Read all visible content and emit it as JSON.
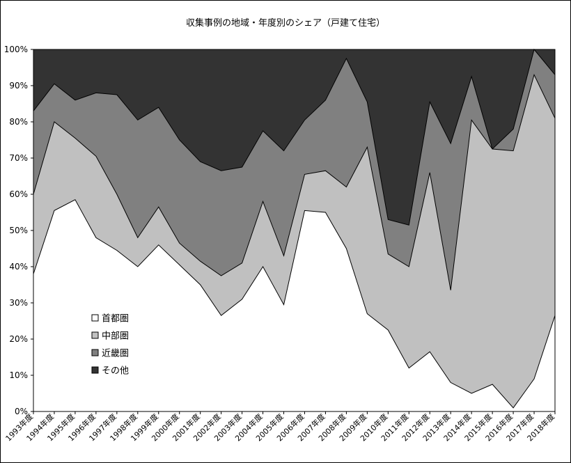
{
  "chart_data": {
    "type": "area",
    "stacked": true,
    "title": "収集事例の地域・年度別のシェア（戸建て住宅）",
    "categories": [
      "1993年度",
      "1994年度",
      "1995年度",
      "1996年度",
      "1997年度",
      "1998年度",
      "1999年度",
      "2000年度",
      "2001年度",
      "2002年度",
      "2003年度",
      "2004年度",
      "2005年度",
      "2006年度",
      "2007年度",
      "2008年度",
      "2009年度",
      "2010年度",
      "2011年度",
      "2012年度",
      "2013年度",
      "2014年度",
      "2015年度",
      "2016年度",
      "2017年度",
      "2018年度"
    ],
    "ylim": [
      0,
      100
    ],
    "yticks": [
      "0%",
      "10%",
      "20%",
      "30%",
      "40%",
      "50%",
      "60%",
      "70%",
      "80%",
      "90%",
      "100%"
    ],
    "legend_position": "left-lower-inside",
    "series": [
      {
        "name": "首都圏",
        "color": "#ffffff",
        "values": [
          38,
          55.5,
          58.5,
          48,
          44.5,
          40,
          46,
          40.5,
          35,
          26.5,
          31,
          40,
          29.5,
          55.5,
          55,
          45,
          27,
          22.5,
          12,
          16.5,
          8,
          5,
          7.5,
          1,
          9,
          26.5
        ]
      },
      {
        "name": "中部圏",
        "color": "#c0c0c0",
        "values": [
          22,
          24.5,
          17,
          22.5,
          15.5,
          8,
          10.5,
          6,
          6.5,
          11,
          10,
          18,
          13.5,
          10,
          11.5,
          17,
          46,
          21,
          28,
          49.5,
          25.5,
          75.5,
          65,
          71,
          84,
          54.5
        ]
      },
      {
        "name": "近畿圏",
        "color": "#808080",
        "values": [
          23,
          10.5,
          10.5,
          17.5,
          27.5,
          32.5,
          27.5,
          28.5,
          27.5,
          29,
          26.5,
          19.5,
          29,
          15,
          19.5,
          35.5,
          12.5,
          9.5,
          11.5,
          19.5,
          40.5,
          12,
          0,
          6,
          7,
          12
        ]
      },
      {
        "name": "その他",
        "color": "#333333",
        "values": [
          17,
          9.5,
          14,
          12,
          12.5,
          19.5,
          16,
          25,
          31,
          33.5,
          32.5,
          22.5,
          28,
          19.5,
          14,
          2.5,
          14.5,
          47,
          48.5,
          14.5,
          26,
          7.5,
          27.5,
          22,
          0,
          7
        ]
      }
    ]
  }
}
